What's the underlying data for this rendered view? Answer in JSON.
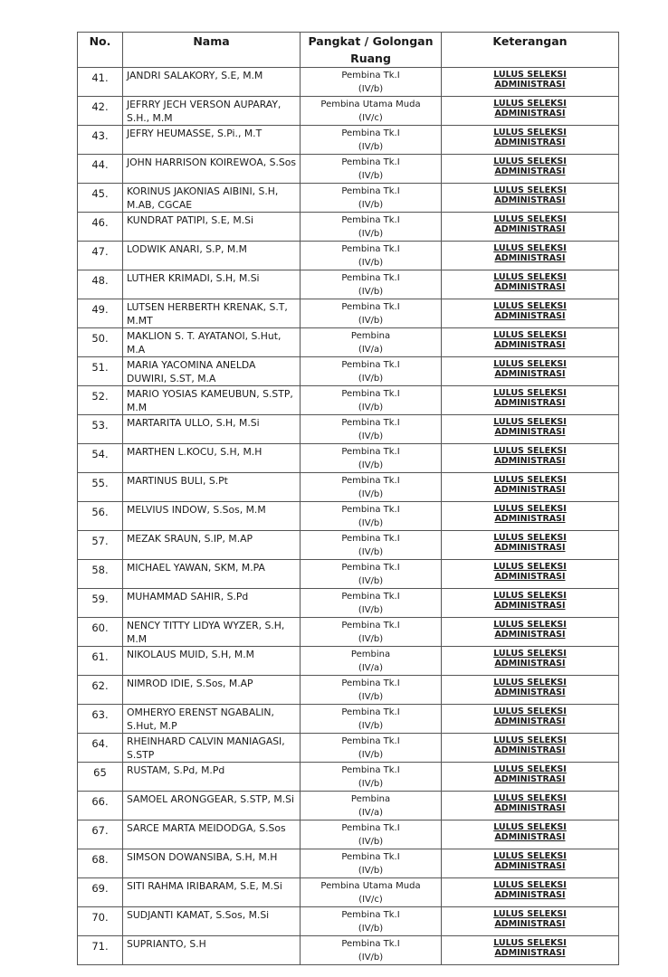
{
  "table": {
    "headers": {
      "no": "No.",
      "nama": "Nama",
      "pangkat": "Pangkat / Golongan Ruang",
      "keterangan": "Keterangan"
    },
    "rows": [
      {
        "no": "41.",
        "nama": "JANDRI SALAKORY, S.E, M.M",
        "pangkat": "Pembina Tk.I",
        "golongan": "(IV/b)",
        "ket1": "LULUS SELEKSI",
        "ket2": "ADMINISTRASI"
      },
      {
        "no": "42.",
        "nama": "JEFRRY JECH VERSON AUPARAY, S.H., M.M",
        "pangkat": "Pembina Utama Muda",
        "golongan": "(IV/c)",
        "ket1": "LULUS SELEKSI",
        "ket2": "ADMINISTRASI"
      },
      {
        "no": "43.",
        "nama": "JEFRY HEUMASSE, S.Pi., M.T",
        "pangkat": "Pembina Tk.I",
        "golongan": "(IV/b)",
        "ket1": "LULUS SELEKSI",
        "ket2": "ADMINISTRASI"
      },
      {
        "no": "44.",
        "nama": "JOHN HARRISON KOIREWOA, S.Sos",
        "pangkat": "Pembina Tk.I",
        "golongan": "(IV/b)",
        "ket1": "LULUS SELEKSI",
        "ket2": "ADMINISTRASI"
      },
      {
        "no": "45.",
        "nama": "KORINUS JAKONIAS AIBINI, S.H, M.AB, CGCAE",
        "pangkat": "Pembina Tk.I",
        "golongan": "(IV/b)",
        "ket1": "LULUS SELEKSI",
        "ket2": "ADMINISTRASI"
      },
      {
        "no": "46.",
        "nama": "KUNDRAT PATIPI, S.E, M.Si",
        "pangkat": "Pembina Tk.I",
        "golongan": "(IV/b)",
        "ket1": "LULUS SELEKSI",
        "ket2": "ADMINISTRASI"
      },
      {
        "no": "47.",
        "nama": "LODWIK ANARI, S.P, M.M",
        "pangkat": "Pembina Tk.I",
        "golongan": "(IV/b)",
        "ket1": "LULUS SELEKSI",
        "ket2": "ADMINISTRASI"
      },
      {
        "no": "48.",
        "nama": "LUTHER KRIMADI, S.H, M.Si",
        "pangkat": "Pembina Tk.I",
        "golongan": "(IV/b)",
        "ket1": "LULUS SELEKSI",
        "ket2": "ADMINISTRASI"
      },
      {
        "no": "49.",
        "nama": "LUTSEN HERBERTH KRENAK, S.T, M.MT",
        "pangkat": "Pembina Tk.I",
        "golongan": "(IV/b)",
        "ket1": "LULUS SELEKSI",
        "ket2": "ADMINISTRASI"
      },
      {
        "no": "50.",
        "nama": "MAKLION S. T. AYATANOI, S.Hut, M.A",
        "pangkat": "Pembina",
        "golongan": "(IV/a)",
        "ket1": "LULUS SELEKSI",
        "ket2": "ADMINISTRASI"
      },
      {
        "no": "51.",
        "nama": "MARIA YACOMINA ANELDA DUWIRI, S.ST, M.A",
        "pangkat": "Pembina Tk.I",
        "golongan": "(IV/b)",
        "ket1": "LULUS SELEKSI",
        "ket2": "ADMINISTRASI"
      },
      {
        "no": "52.",
        "nama": "MARIO YOSIAS KAMEUBUN, S.STP, M.M",
        "pangkat": "Pembina Tk.I",
        "golongan": "(IV/b)",
        "ket1": "LULUS SELEKSI",
        "ket2": "ADMINISTRASI"
      },
      {
        "no": "53.",
        "nama": "MARTARITA ULLO, S.H, M.Si",
        "pangkat": "Pembina Tk.I",
        "golongan": "(IV/b)",
        "ket1": "LULUS SELEKSI",
        "ket2": "ADMINISTRASI"
      },
      {
        "no": "54.",
        "nama": "MARTHEN L.KOCU, S.H, M.H",
        "pangkat": "Pembina Tk.I",
        "golongan": "(IV/b)",
        "ket1": "LULUS SELEKSI",
        "ket2": "ADMINISTRASI"
      },
      {
        "no": "55.",
        "nama": "MARTINUS BULI, S.Pt",
        "pangkat": "Pembina Tk.I",
        "golongan": "(IV/b)",
        "ket1": "LULUS SELEKSI",
        "ket2": "ADMINISTRASI"
      },
      {
        "no": "56.",
        "nama": "MELVIUS INDOW, S.Sos, M.M",
        "pangkat": "Pembina Tk.I",
        "golongan": "(IV/b)",
        "ket1": "LULUS SELEKSI",
        "ket2": "ADMINISTRASI"
      },
      {
        "no": "57.",
        "nama": "MEZAK SRAUN, S.IP, M.AP",
        "pangkat": "Pembina Tk.I",
        "golongan": "(IV/b)",
        "ket1": "LULUS SELEKSI",
        "ket2": "ADMINISTRASI"
      },
      {
        "no": "58.",
        "nama": "MICHAEL YAWAN, SKM, M.PA",
        "pangkat": "Pembina Tk.I",
        "golongan": "(IV/b)",
        "ket1": "LULUS SELEKSI",
        "ket2": "ADMINISTRASI"
      },
      {
        "no": "59.",
        "nama": "MUHAMMAD SAHIR, S.Pd",
        "pangkat": "Pembina Tk.I",
        "golongan": "(IV/b)",
        "ket1": "LULUS SELEKSI",
        "ket2": "ADMINISTRASI"
      },
      {
        "no": "60.",
        "nama": "NENCY TITTY LIDYA WYZER, S.H, M.M",
        "pangkat": "Pembina Tk.I",
        "golongan": "(IV/b)",
        "ket1": "LULUS SELEKSI",
        "ket2": "ADMINISTRASI"
      },
      {
        "no": "61.",
        "nama": "NIKOLAUS MUID, S.H, M.M",
        "pangkat": "Pembina",
        "golongan": "(IV/a)",
        "ket1": "LULUS SELEKSI",
        "ket2": "ADMINISTRASI"
      },
      {
        "no": "62.",
        "nama": "NIMROD IDIE, S.Sos, M.AP",
        "pangkat": "Pembina Tk.I",
        "golongan": "(IV/b)",
        "ket1": "LULUS SELEKSI",
        "ket2": "ADMINISTRASI"
      },
      {
        "no": "63.",
        "nama": "OMHERYO ERENST NGABALIN, S.Hut, M.P",
        "pangkat": "Pembina Tk.I",
        "golongan": "(IV/b)",
        "ket1": "LULUS SELEKSI",
        "ket2": "ADMINISTRASI"
      },
      {
        "no": "64.",
        "nama": "RHEINHARD CALVIN MANIAGASI, S.STP",
        "pangkat": "Pembina Tk.I",
        "golongan": "(IV/b)",
        "ket1": "LULUS SELEKSI",
        "ket2": "ADMINISTRASI"
      },
      {
        "no": "65",
        "nama": "RUSTAM, S.Pd, M.Pd",
        "pangkat": "Pembina Tk.I",
        "golongan": "(IV/b)",
        "ket1": "LULUS SELEKSI",
        "ket2": "ADMINISTRASI"
      },
      {
        "no": "66.",
        "nama": "SAMOEL ARONGGEAR, S.STP, M.Si",
        "pangkat": "Pembina",
        "golongan": "(IV/a)",
        "ket1": "LULUS SELEKSI",
        "ket2": "ADMINISTRASI"
      },
      {
        "no": "67.",
        "nama": "SARCE MARTA MEIDODGA, S.Sos",
        "pangkat": "Pembina Tk.I",
        "golongan": "(IV/b)",
        "ket1": "LULUS SELEKSI",
        "ket2": "ADMINISTRASI"
      },
      {
        "no": "68.",
        "nama": "SIMSON DOWANSIBA, S.H, M.H",
        "pangkat": "Pembina Tk.I",
        "golongan": "(IV/b)",
        "ket1": "LULUS SELEKSI",
        "ket2": "ADMINISTRASI"
      },
      {
        "no": "69.",
        "nama": "SITI RAHMA IRIBARAM, S.E, M.Si",
        "pangkat": "Pembina Utama Muda",
        "golongan": "(IV/c)",
        "ket1": "LULUS SELEKSI",
        "ket2": "ADMINISTRASI"
      },
      {
        "no": "70.",
        "nama": "SUDJANTI KAMAT, S.Sos, M.Si",
        "pangkat": "Pembina Tk.I",
        "golongan": "(IV/b)",
        "ket1": "LULUS SELEKSI",
        "ket2": "ADMINISTRASI"
      },
      {
        "no": "71.",
        "nama": "SUPRIANTO, S.H",
        "pangkat": "Pembina Tk.I",
        "golongan": "(IV/b)",
        "ket1": "LULUS SELEKSI",
        "ket2": "ADMINISTRASI"
      }
    ]
  }
}
